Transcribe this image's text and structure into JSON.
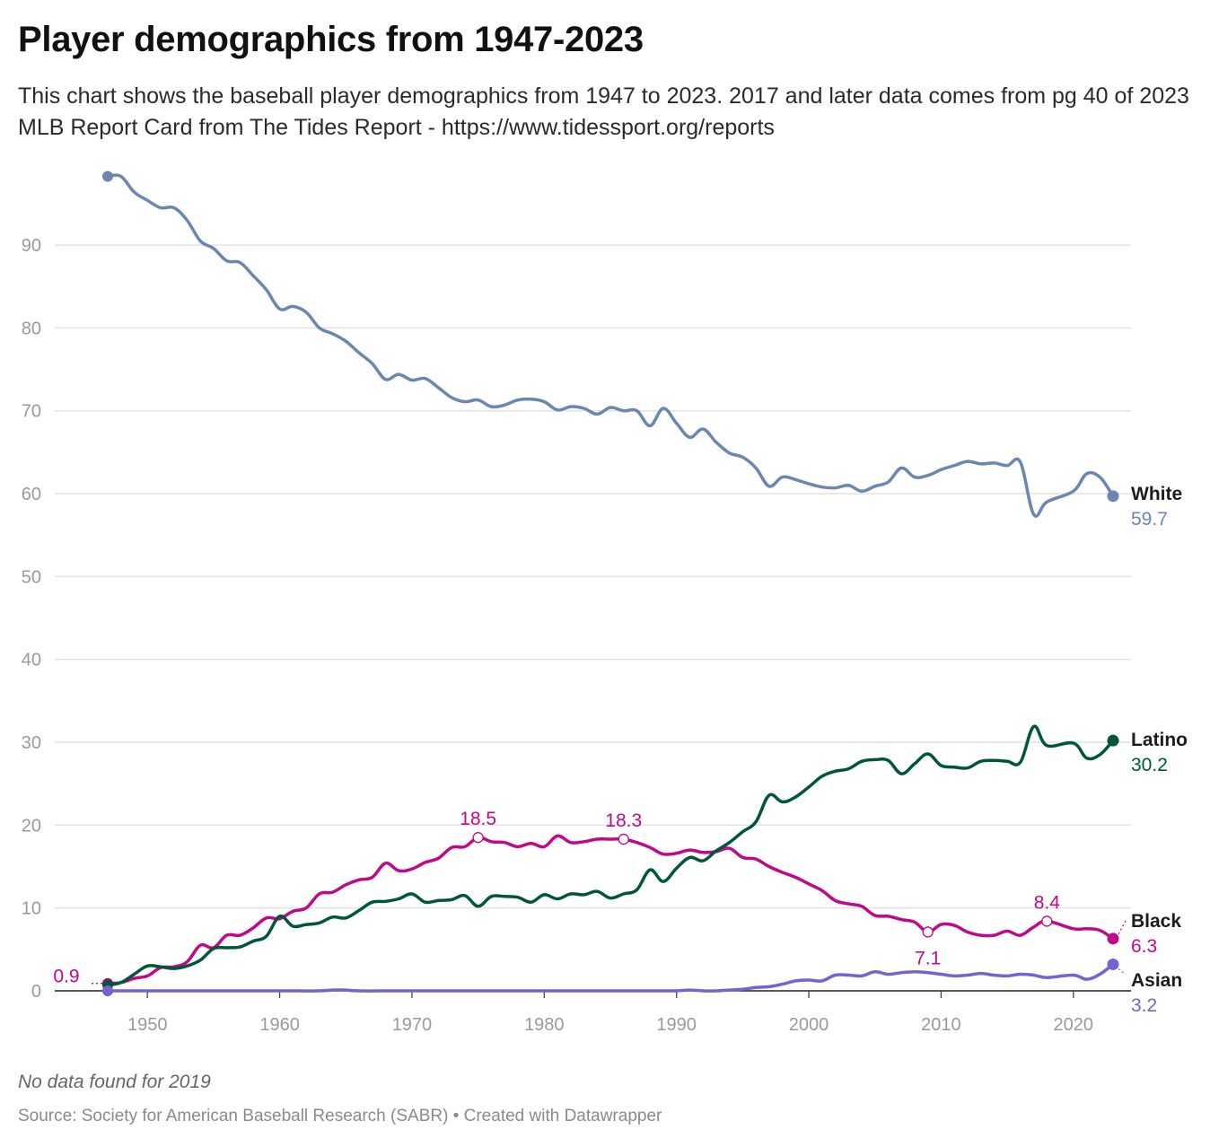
{
  "header": {
    "title": "Player demographics from 1947-2023",
    "subtitle": "This chart shows the baseball player demographics from 1947 to 2023. 2017 and later data comes from pg 40 of 2023 MLB Report Card from The Tides Report - https://www.tidessport.org/reports"
  },
  "footer": {
    "note": "No data found for 2019",
    "source": "Source: Society for American Baseball Research (SABR) • Created with Datawrapper"
  },
  "chart_data": {
    "type": "line",
    "title": "Player demographics from 1947-2023",
    "xlabel": "",
    "ylabel": "",
    "xlim": [
      1947,
      2023
    ],
    "ylim": [
      0,
      99
    ],
    "x_ticks": [
      1950,
      1960,
      1970,
      1980,
      1990,
      2000,
      2010,
      2020
    ],
    "y_ticks": [
      0,
      10,
      20,
      30,
      40,
      50,
      60,
      70,
      80,
      90
    ],
    "grid": true,
    "legend": "direct labels at line ends (right)",
    "series": [
      {
        "name": "White",
        "color": "#6b86b0",
        "end_label": "59.7",
        "points": [
          [
            1947,
            98.3
          ],
          [
            1948,
            98.3
          ],
          [
            1949,
            96.4
          ],
          [
            1950,
            95.4
          ],
          [
            1951,
            94.5
          ],
          [
            1952,
            94.5
          ],
          [
            1953,
            93.0
          ],
          [
            1954,
            90.5
          ],
          [
            1955,
            89.6
          ],
          [
            1956,
            88.1
          ],
          [
            1957,
            87.9
          ],
          [
            1958,
            86.3
          ],
          [
            1959,
            84.6
          ],
          [
            1960,
            82.3
          ],
          [
            1961,
            82.6
          ],
          [
            1962,
            81.9
          ],
          [
            1963,
            80.0
          ],
          [
            1964,
            79.3
          ],
          [
            1965,
            78.4
          ],
          [
            1966,
            77.0
          ],
          [
            1967,
            75.7
          ],
          [
            1968,
            73.8
          ],
          [
            1969,
            74.4
          ],
          [
            1970,
            73.7
          ],
          [
            1971,
            73.9
          ],
          [
            1972,
            72.8
          ],
          [
            1973,
            71.6
          ],
          [
            1974,
            71.1
          ],
          [
            1975,
            71.3
          ],
          [
            1976,
            70.5
          ],
          [
            1977,
            70.7
          ],
          [
            1978,
            71.3
          ],
          [
            1979,
            71.4
          ],
          [
            1980,
            71.1
          ],
          [
            1981,
            70.1
          ],
          [
            1982,
            70.5
          ],
          [
            1983,
            70.3
          ],
          [
            1984,
            69.6
          ],
          [
            1985,
            70.4
          ],
          [
            1986,
            70.0
          ],
          [
            1987,
            70.0
          ],
          [
            1988,
            68.2
          ],
          [
            1989,
            70.3
          ],
          [
            1990,
            68.5
          ],
          [
            1991,
            66.8
          ],
          [
            1992,
            67.8
          ],
          [
            1993,
            66.2
          ],
          [
            1994,
            64.9
          ],
          [
            1995,
            64.4
          ],
          [
            1996,
            63.1
          ],
          [
            1997,
            60.9
          ],
          [
            1998,
            62.0
          ],
          [
            1999,
            61.7
          ],
          [
            2000,
            61.2
          ],
          [
            2001,
            60.8
          ],
          [
            2002,
            60.7
          ],
          [
            2003,
            61.0
          ],
          [
            2004,
            60.3
          ],
          [
            2005,
            60.9
          ],
          [
            2006,
            61.4
          ],
          [
            2007,
            63.1
          ],
          [
            2008,
            62.0
          ],
          [
            2009,
            62.2
          ],
          [
            2010,
            62.9
          ],
          [
            2011,
            63.4
          ],
          [
            2012,
            63.9
          ],
          [
            2013,
            63.6
          ],
          [
            2014,
            63.7
          ],
          [
            2015,
            63.4
          ],
          [
            2016,
            63.8
          ],
          [
            2017,
            57.5
          ],
          [
            2018,
            59.0
          ],
          [
            2019,
            null
          ],
          [
            2020,
            60.3
          ],
          [
            2021,
            62.4
          ],
          [
            2022,
            62.0
          ],
          [
            2023,
            59.7
          ]
        ]
      },
      {
        "name": "Latino",
        "color": "#00563a",
        "end_label": "30.2",
        "points": [
          [
            1947,
            0.7
          ],
          [
            1948,
            1.0
          ],
          [
            1949,
            2.0
          ],
          [
            1950,
            3.0
          ],
          [
            1951,
            2.9
          ],
          [
            1952,
            2.7
          ],
          [
            1953,
            3.0
          ],
          [
            1954,
            3.7
          ],
          [
            1955,
            5.1
          ],
          [
            1956,
            5.2
          ],
          [
            1957,
            5.3
          ],
          [
            1958,
            6.0
          ],
          [
            1959,
            6.6
          ],
          [
            1960,
            9.0
          ],
          [
            1961,
            7.8
          ],
          [
            1962,
            8.0
          ],
          [
            1963,
            8.2
          ],
          [
            1964,
            8.9
          ],
          [
            1965,
            8.8
          ],
          [
            1966,
            9.7
          ],
          [
            1967,
            10.7
          ],
          [
            1968,
            10.8
          ],
          [
            1969,
            11.1
          ],
          [
            1970,
            11.7
          ],
          [
            1971,
            10.7
          ],
          [
            1972,
            10.9
          ],
          [
            1973,
            11.0
          ],
          [
            1974,
            11.5
          ],
          [
            1975,
            10.2
          ],
          [
            1976,
            11.4
          ],
          [
            1977,
            11.4
          ],
          [
            1978,
            11.3
          ],
          [
            1979,
            10.7
          ],
          [
            1980,
            11.6
          ],
          [
            1981,
            11.1
          ],
          [
            1982,
            11.7
          ],
          [
            1983,
            11.6
          ],
          [
            1984,
            12.0
          ],
          [
            1985,
            11.2
          ],
          [
            1986,
            11.7
          ],
          [
            1987,
            12.2
          ],
          [
            1988,
            14.6
          ],
          [
            1989,
            13.2
          ],
          [
            1990,
            14.8
          ],
          [
            1991,
            16.1
          ],
          [
            1992,
            15.7
          ],
          [
            1993,
            16.9
          ],
          [
            1994,
            17.9
          ],
          [
            1995,
            19.2
          ],
          [
            1996,
            20.4
          ],
          [
            1997,
            23.6
          ],
          [
            1998,
            22.8
          ],
          [
            1999,
            23.4
          ],
          [
            2000,
            24.6
          ],
          [
            2001,
            25.9
          ],
          [
            2002,
            26.5
          ],
          [
            2003,
            26.8
          ],
          [
            2004,
            27.7
          ],
          [
            2005,
            27.9
          ],
          [
            2006,
            27.8
          ],
          [
            2007,
            26.2
          ],
          [
            2008,
            27.4
          ],
          [
            2009,
            28.6
          ],
          [
            2010,
            27.2
          ],
          [
            2011,
            27.0
          ],
          [
            2012,
            26.9
          ],
          [
            2013,
            27.7
          ],
          [
            2014,
            27.8
          ],
          [
            2015,
            27.7
          ],
          [
            2016,
            27.6
          ],
          [
            2017,
            31.9
          ],
          [
            2018,
            29.6
          ],
          [
            2019,
            null
          ],
          [
            2020,
            29.9
          ],
          [
            2021,
            28.1
          ],
          [
            2022,
            28.5
          ],
          [
            2023,
            30.2
          ]
        ]
      },
      {
        "name": "Black",
        "color": "#c0088a",
        "end_label": "6.3",
        "points": [
          [
            1947,
            0.9
          ],
          [
            1948,
            1.0
          ],
          [
            1949,
            1.5
          ],
          [
            1950,
            1.8
          ],
          [
            1951,
            2.8
          ],
          [
            1952,
            2.9
          ],
          [
            1953,
            3.5
          ],
          [
            1954,
            5.5
          ],
          [
            1955,
            5.2
          ],
          [
            1956,
            6.7
          ],
          [
            1957,
            6.7
          ],
          [
            1958,
            7.6
          ],
          [
            1959,
            8.8
          ],
          [
            1960,
            8.7
          ],
          [
            1961,
            9.6
          ],
          [
            1962,
            10.0
          ],
          [
            1963,
            11.7
          ],
          [
            1964,
            11.9
          ],
          [
            1965,
            12.8
          ],
          [
            1966,
            13.4
          ],
          [
            1967,
            13.7
          ],
          [
            1968,
            15.4
          ],
          [
            1969,
            14.5
          ],
          [
            1970,
            14.7
          ],
          [
            1971,
            15.5
          ],
          [
            1972,
            16.0
          ],
          [
            1973,
            17.3
          ],
          [
            1974,
            17.4
          ],
          [
            1975,
            18.5
          ],
          [
            1976,
            18.0
          ],
          [
            1977,
            17.9
          ],
          [
            1978,
            17.4
          ],
          [
            1979,
            17.8
          ],
          [
            1980,
            17.4
          ],
          [
            1981,
            18.7
          ],
          [
            1982,
            17.9
          ],
          [
            1983,
            18.0
          ],
          [
            1984,
            18.3
          ],
          [
            1985,
            18.3
          ],
          [
            1986,
            18.3
          ],
          [
            1987,
            17.9
          ],
          [
            1988,
            17.3
          ],
          [
            1989,
            16.5
          ],
          [
            1990,
            16.6
          ],
          [
            1991,
            17.0
          ],
          [
            1992,
            16.7
          ],
          [
            1993,
            16.8
          ],
          [
            1994,
            17.2
          ],
          [
            1995,
            16.1
          ],
          [
            1996,
            15.9
          ],
          [
            1997,
            15.0
          ],
          [
            1998,
            14.3
          ],
          [
            1999,
            13.7
          ],
          [
            2000,
            12.9
          ],
          [
            2001,
            12.1
          ],
          [
            2002,
            10.9
          ],
          [
            2003,
            10.5
          ],
          [
            2004,
            10.2
          ],
          [
            2005,
            9.1
          ],
          [
            2006,
            9.0
          ],
          [
            2007,
            8.6
          ],
          [
            2008,
            8.3
          ],
          [
            2009,
            7.1
          ],
          [
            2010,
            8.0
          ],
          [
            2011,
            7.9
          ],
          [
            2012,
            7.1
          ],
          [
            2013,
            6.7
          ],
          [
            2014,
            6.7
          ],
          [
            2015,
            7.2
          ],
          [
            2016,
            6.7
          ],
          [
            2017,
            7.7
          ],
          [
            2018,
            8.4
          ],
          [
            2019,
            null
          ],
          [
            2020,
            7.5
          ],
          [
            2021,
            7.5
          ],
          [
            2022,
            7.3
          ],
          [
            2023,
            6.3
          ]
        ]
      },
      {
        "name": "Asian",
        "color": "#7463d1",
        "end_label": "3.2",
        "points": [
          [
            1947,
            0.0
          ],
          [
            1955,
            0.0
          ],
          [
            1960,
            0.0
          ],
          [
            1963,
            0.0
          ],
          [
            1964,
            0.1
          ],
          [
            1965,
            0.1
          ],
          [
            1966,
            0.0
          ],
          [
            1970,
            0.0
          ],
          [
            1980,
            0.0
          ],
          [
            1989,
            0.0
          ],
          [
            1990,
            0.0
          ],
          [
            1991,
            0.1
          ],
          [
            1992,
            0.0
          ],
          [
            1993,
            0.0
          ],
          [
            1994,
            0.1
          ],
          [
            1995,
            0.2
          ],
          [
            1996,
            0.4
          ],
          [
            1997,
            0.5
          ],
          [
            1998,
            0.8
          ],
          [
            1999,
            1.2
          ],
          [
            2000,
            1.3
          ],
          [
            2001,
            1.2
          ],
          [
            2002,
            1.9
          ],
          [
            2003,
            1.9
          ],
          [
            2004,
            1.8
          ],
          [
            2005,
            2.3
          ],
          [
            2006,
            2.0
          ],
          [
            2007,
            2.2
          ],
          [
            2008,
            2.3
          ],
          [
            2009,
            2.2
          ],
          [
            2010,
            2.0
          ],
          [
            2011,
            1.8
          ],
          [
            2012,
            1.9
          ],
          [
            2013,
            2.1
          ],
          [
            2014,
            1.9
          ],
          [
            2015,
            1.8
          ],
          [
            2016,
            2.0
          ],
          [
            2017,
            1.9
          ],
          [
            2018,
            1.6
          ],
          [
            2019,
            null
          ],
          [
            2020,
            1.9
          ],
          [
            2021,
            1.4
          ],
          [
            2022,
            2.0
          ],
          [
            2023,
            3.2
          ]
        ]
      }
    ],
    "annotations": [
      {
        "series": "Black",
        "x": 1947,
        "y": 0.9,
        "label": "0.9"
      },
      {
        "series": "Black",
        "x": 1975,
        "y": 18.5,
        "label": "18.5"
      },
      {
        "series": "Black",
        "x": 1986,
        "y": 18.3,
        "label": "18.3"
      },
      {
        "series": "Black",
        "x": 2009,
        "y": 7.1,
        "label": "7.1"
      },
      {
        "series": "Black",
        "x": 2018,
        "y": 8.4,
        "label": "8.4"
      }
    ]
  }
}
